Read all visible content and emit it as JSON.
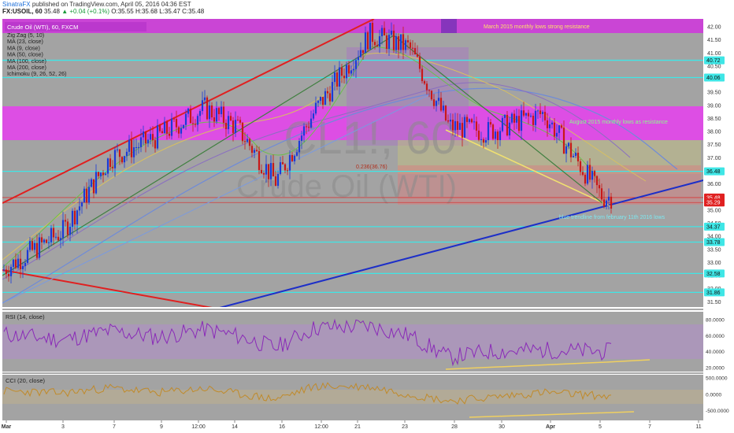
{
  "header": {
    "brand": "SinatraFX",
    "published": "published on TradingView.com, April 05, 2016 04:36 EST",
    "symbol": "FX:USOIL, 60",
    "last": "35.48",
    "change_arrow": "▲",
    "change": "+0.04 (+0.1%)",
    "ohlc": "O:35.55 H:35.68 L:35.47 C:35.48"
  },
  "legend": {
    "title": "Crude Oil (WTI), 60, FXCM",
    "items": [
      "Zig Zag (5, 10)",
      "MA (23, close)",
      "MA (9, close)",
      "MA (50, close)",
      "MA (100, close)",
      "MA (200, close)",
      "Ichimoku (9, 26, 52, 26)"
    ]
  },
  "annotations": {
    "march_resistance": "March 2015 monthly lows strong resistance",
    "august_resistance": "August 2015 monthly lows as resistance",
    "blue_trendline": "blue trendline from february 11th 2016 lows",
    "fib_label": "0.236(36.76)"
  },
  "watermark": {
    "line1": "CL1!, 60",
    "line2": "Crude Oil (WTI)"
  },
  "colors": {
    "panel_bg": "#a3a3a3",
    "magenta_zone": "#e04ae8",
    "cyan_lines": "#3fe6e6",
    "red_line": "#e02020",
    "blue_line": "#1d2fc8",
    "yellow_trend": "#f0e070",
    "bull_candle": "#1b3ad8",
    "bear_candle": "#c81818"
  },
  "price_axis": {
    "ticks": [
      "42.00",
      "41.50",
      "41.00",
      "40.50",
      "40.00",
      "39.50",
      "39.00",
      "38.50",
      "38.00",
      "37.50",
      "37.00",
      "36.50",
      "36.00",
      "35.50",
      "35.00",
      "34.50",
      "34.00",
      "33.50",
      "33.00",
      "32.50",
      "32.00",
      "31.50"
    ],
    "badges": [
      "40.72",
      "40.06",
      "36.48",
      "35.48",
      "35.29",
      "34.37",
      "33.78",
      "32.58",
      "31.86"
    ]
  },
  "rsi": {
    "title": "RSI (14, close)",
    "ticks": [
      "80.0000",
      "60.0000",
      "40.0000",
      "20.0000"
    ]
  },
  "cci": {
    "title": "CCI (20, close)",
    "ticks": [
      "500.0000",
      "0.0000",
      "-500.0000"
    ]
  },
  "time_axis": [
    "Mar",
    "3",
    "7",
    "9",
    "12:00",
    "14",
    "16",
    "12:00",
    "21",
    "23",
    "28",
    "30",
    "Apr",
    "5",
    "7",
    "11"
  ],
  "chart_data": {
    "type": "line",
    "symbol": "FX:USOIL",
    "timeframe": "60",
    "x": [
      "Mar",
      "3",
      "7",
      "9",
      "12:00",
      "14",
      "16",
      "12:00",
      "21",
      "23",
      "28",
      "30",
      "Apr",
      "5",
      "7",
      "11"
    ],
    "ylim": [
      31.3,
      42.3
    ],
    "series": [
      {
        "name": "Crude Oil (WTI)",
        "values": [
          32.7,
          34.2,
          37.0,
          37.8,
          38.9,
          38.2,
          36.1,
          38.8,
          41.7,
          41.2,
          38.2,
          38.0,
          38.7,
          35.5,
          null,
          null
        ]
      }
    ],
    "levels": [
      40.72,
      40.06,
      36.48,
      35.48,
      35.29,
      34.37,
      33.78,
      32.58,
      31.86
    ],
    "zones": [
      {
        "from": 41.7,
        "to": 42.3,
        "label": "March 2015 monthly lows strong resistance"
      },
      {
        "from": 37.8,
        "to": 39.0,
        "label": "August 2015 monthly lows as resistance"
      }
    ],
    "rsi": {
      "name": "RSI (14, close)",
      "ylim": [
        15,
        90
      ],
      "values": [
        62,
        55,
        66,
        58,
        68,
        60,
        45,
        70,
        72,
        60,
        33,
        40,
        42,
        40,
        null,
        null
      ]
    },
    "cci": {
      "name": "CCI (20, close)",
      "ylim": [
        -800,
        600
      ],
      "values": [
        100,
        40,
        200,
        50,
        180,
        20,
        -150,
        250,
        230,
        0,
        -200,
        -100,
        60,
        -50,
        null,
        null
      ]
    }
  }
}
